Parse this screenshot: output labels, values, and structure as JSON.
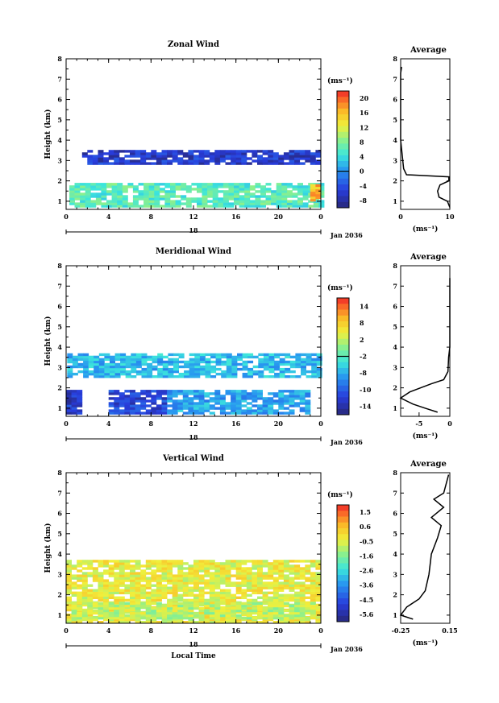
{
  "chart_data": [
    {
      "type": "heatmap",
      "title": "Zonal Wind",
      "xlabel": "",
      "ylabel": "Height (km)",
      "x_ticks": [
        "0",
        "4",
        "8",
        "12",
        "16",
        "20",
        "0"
      ],
      "y_ticks": [
        "1",
        "2",
        "3",
        "4",
        "5",
        "6",
        "7",
        "8"
      ],
      "xlim": [
        0,
        24
      ],
      "ylim": [
        0.6,
        8
      ],
      "day_label": "18",
      "date_label": "Jan 2036",
      "colorbar": {
        "unit": "(ms⁻¹)",
        "ticks": [
          "20",
          "16",
          "12",
          "8",
          "4",
          "0",
          "-4",
          "-8"
        ],
        "range": [
          -10,
          22
        ],
        "zero_line": 0
      },
      "regions": [
        {
          "x": [
            0.3,
            24
          ],
          "y": [
            0.7,
            1.8
          ],
          "value": 6
        },
        {
          "x": [
            1.5,
            24
          ],
          "y": [
            2.8,
            3.5
          ],
          "value": -6
        },
        {
          "x": [
            23,
            24
          ],
          "y": [
            1.0,
            1.8
          ],
          "value": 16
        }
      ],
      "profile": {
        "title": "Average",
        "xlabel": "(ms⁻¹)",
        "x_ticks": [
          "0",
          "10"
        ],
        "xlim": [
          0,
          10
        ],
        "points": [
          [
            0.2,
            7.6
          ],
          [
            0,
            7.3
          ],
          [
            0,
            4.0
          ],
          [
            0.6,
            2.6
          ],
          [
            1.2,
            2.3
          ],
          [
            9.8,
            2.2
          ],
          [
            9.8,
            2.0
          ],
          [
            8.0,
            1.8
          ],
          [
            7.5,
            1.5
          ],
          [
            7.8,
            1.2
          ],
          [
            9.5,
            1.0
          ],
          [
            10,
            0.7
          ]
        ]
      }
    },
    {
      "type": "heatmap",
      "title": "Meridional Wind",
      "xlabel": "",
      "ylabel": "Height (km)",
      "x_ticks": [
        "0",
        "4",
        "8",
        "12",
        "16",
        "20",
        "0"
      ],
      "y_ticks": [
        "1",
        "2",
        "3",
        "4",
        "5",
        "6",
        "7",
        "8"
      ],
      "xlim": [
        0,
        24
      ],
      "ylim": [
        0.6,
        8
      ],
      "day_label": "18",
      "date_label": "Jan 2036",
      "colorbar": {
        "unit": "(ms⁻¹)",
        "ticks": [
          "14",
          "8",
          "2",
          "-2",
          "-8",
          "-10",
          "-14"
        ],
        "range": [
          -16,
          16
        ],
        "zero_line": 0
      },
      "regions": [
        {
          "x": [
            0.1,
            24
          ],
          "y": [
            2.5,
            3.6
          ],
          "value": -4
        },
        {
          "x": [
            0,
            1.2
          ],
          "y": [
            0.7,
            1.9
          ],
          "value": -12
        },
        {
          "x": [
            4,
            9.5
          ],
          "y": [
            0.7,
            1.8
          ],
          "value": -11
        },
        {
          "x": [
            9.5,
            23
          ],
          "y": [
            0.7,
            1.9
          ],
          "value": -5
        }
      ],
      "profile": {
        "title": "Average",
        "xlabel": "(ms⁻¹)",
        "x_ticks": [
          "-5",
          "0"
        ],
        "xlim": [
          -8,
          0
        ],
        "points": [
          [
            0,
            7.4
          ],
          [
            0,
            4.0
          ],
          [
            -0.2,
            3.5
          ],
          [
            -0.3,
            2.8
          ],
          [
            -1.0,
            2.4
          ],
          [
            -3.0,
            2.2
          ],
          [
            -6.5,
            1.8
          ],
          [
            -8.0,
            1.5
          ],
          [
            -6.0,
            1.2
          ],
          [
            -4.0,
            1.0
          ],
          [
            -2.0,
            0.8
          ]
        ]
      }
    },
    {
      "type": "heatmap",
      "title": "Vertical Wind",
      "xlabel": "Local Time",
      "ylabel": "Height (km)",
      "x_ticks": [
        "0",
        "4",
        "8",
        "12",
        "16",
        "20",
        "0"
      ],
      "y_ticks": [
        "1",
        "2",
        "3",
        "4",
        "5",
        "6",
        "7",
        "8"
      ],
      "xlim": [
        0,
        24
      ],
      "ylim": [
        0.6,
        8
      ],
      "day_label": "18",
      "date_label": "Jan 2036",
      "colorbar": {
        "unit": "(ms⁻¹)",
        "ticks": [
          "1.5",
          "0.6",
          "-0.5",
          "-1.6",
          "-2.6",
          "-3.6",
          "-4.5",
          "-5.6"
        ],
        "range": [
          -6,
          2
        ],
        "zero_line": null
      },
      "regions": [
        {
          "x": [
            0,
            24
          ],
          "y": [
            0.6,
            3.7
          ],
          "value": -0.4
        },
        {
          "x": [
            0.5,
            23.5
          ],
          "y": [
            0.8,
            1.6
          ],
          "value": -0.9
        }
      ],
      "profile": {
        "title": "Average",
        "xlabel": "(ms⁻¹)",
        "x_ticks": [
          "-0.25",
          "0.15"
        ],
        "xlim": [
          -0.25,
          0.15
        ],
        "points": [
          [
            0.14,
            7.9
          ],
          [
            0.1,
            7.0
          ],
          [
            0.02,
            6.7
          ],
          [
            0.1,
            6.3
          ],
          [
            0.0,
            5.8
          ],
          [
            0.08,
            5.4
          ],
          [
            0.05,
            4.8
          ],
          [
            0.0,
            4.0
          ],
          [
            -0.02,
            3.0
          ],
          [
            -0.05,
            2.2
          ],
          [
            -0.1,
            1.8
          ],
          [
            -0.2,
            1.4
          ],
          [
            -0.25,
            1.0
          ],
          [
            -0.15,
            0.8
          ]
        ]
      }
    }
  ]
}
